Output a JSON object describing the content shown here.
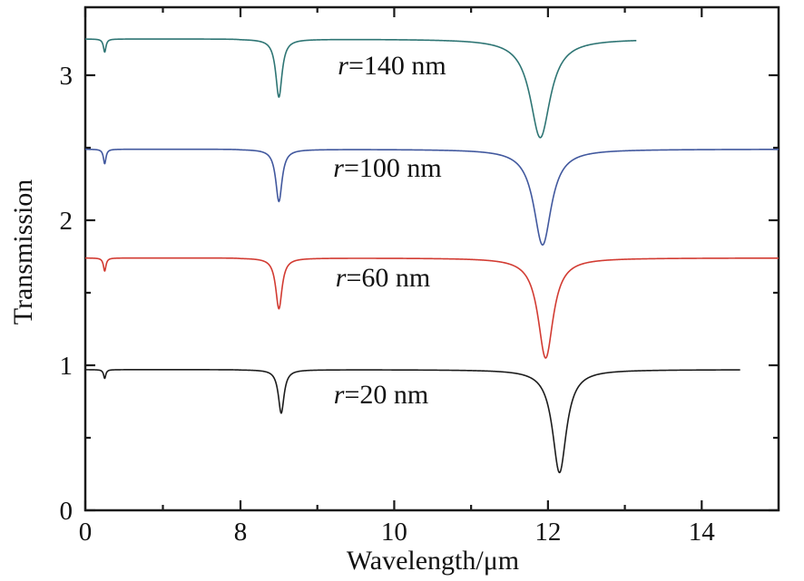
{
  "figure": {
    "background": "#ffffff",
    "frame_color": "#1a1a1a",
    "tick_color": "#1a1a1a",
    "text_color": "#111111"
  },
  "chart_data": {
    "type": "line",
    "title": "",
    "xlabel": "Wavelength/μm",
    "ylabel": "Transmission",
    "legend_position": "none",
    "grid": false,
    "x_axis": {
      "range": [
        0,
        15
      ],
      "note": "axis is piecewise-linear: 0–8 μm compressed, 8–15 μm expanded",
      "major_ticks": [
        0,
        8,
        10,
        12,
        14
      ],
      "major_tick_labels": [
        "0",
        "8",
        "10",
        "12",
        "14"
      ],
      "minor_ticks": [
        4,
        9,
        11,
        13
      ]
    },
    "y_axis": {
      "range": [
        0,
        3.47
      ],
      "major_ticks": [
        0,
        1,
        2,
        3
      ],
      "major_tick_labels": [
        "0",
        "1",
        "2",
        "3"
      ],
      "minor_ticks": [
        0.5,
        1.5,
        2.5
      ]
    },
    "series": [
      {
        "name": "r140",
        "label": "r=140 nm",
        "label_prefix": "r",
        "label_suffix": "=140 nm",
        "color": "#2e7574",
        "baseline": 3.25,
        "x_start": 0,
        "x_end": 13.15,
        "dips": [
          {
            "x": 1.0,
            "depth": 0.09,
            "gamma": 0.08
          },
          {
            "x": 8.5,
            "depth": 0.4,
            "gamma": 0.05
          },
          {
            "x": 11.9,
            "depth": 0.68,
            "gamma": 0.16
          }
        ]
      },
      {
        "name": "r100",
        "label": "r=100 nm",
        "label_prefix": "r",
        "label_suffix": "=100 nm",
        "color": "#41589e",
        "baseline": 2.49,
        "x_start": 0,
        "x_end": 15,
        "dips": [
          {
            "x": 1.0,
            "depth": 0.1,
            "gamma": 0.08
          },
          {
            "x": 8.5,
            "depth": 0.36,
            "gamma": 0.05
          },
          {
            "x": 11.93,
            "depth": 0.66,
            "gamma": 0.14
          }
        ]
      },
      {
        "name": "r60",
        "label": "r=60 nm",
        "label_prefix": "r",
        "label_suffix": "=60 nm",
        "color": "#d23b32",
        "baseline": 1.74,
        "x_start": 0,
        "x_end": 15,
        "dips": [
          {
            "x": 1.0,
            "depth": 0.09,
            "gamma": 0.08
          },
          {
            "x": 8.5,
            "depth": 0.35,
            "gamma": 0.05
          },
          {
            "x": 11.97,
            "depth": 0.69,
            "gamma": 0.12
          }
        ]
      },
      {
        "name": "r20",
        "label": "r=20 nm",
        "label_prefix": "r",
        "label_suffix": "=20 nm",
        "color": "#1c1c1c",
        "baseline": 0.97,
        "x_start": 0,
        "x_end": 14.5,
        "dips": [
          {
            "x": 1.0,
            "depth": 0.06,
            "gamma": 0.07
          },
          {
            "x": 8.53,
            "depth": 0.3,
            "gamma": 0.045
          },
          {
            "x": 12.15,
            "depth": 0.71,
            "gamma": 0.11
          }
        ]
      }
    ]
  }
}
